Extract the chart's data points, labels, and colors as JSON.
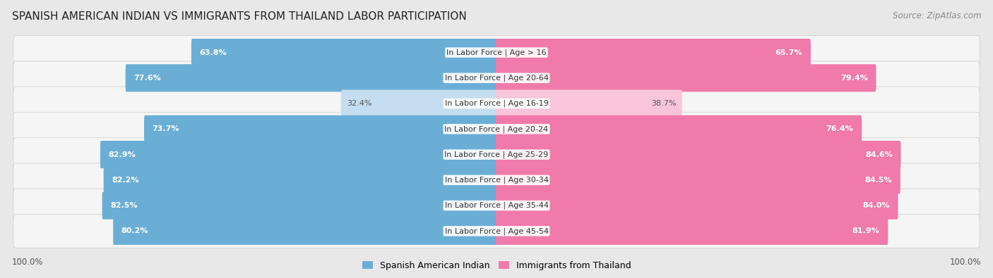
{
  "title": "SPANISH AMERICAN INDIAN VS IMMIGRANTS FROM THAILAND LABOR PARTICIPATION",
  "source": "Source: ZipAtlas.com",
  "categories": [
    "In Labor Force | Age > 16",
    "In Labor Force | Age 20-64",
    "In Labor Force | Age 16-19",
    "In Labor Force | Age 20-24",
    "In Labor Force | Age 25-29",
    "In Labor Force | Age 30-34",
    "In Labor Force | Age 35-44",
    "In Labor Force | Age 45-54"
  ],
  "left_values": [
    63.8,
    77.6,
    32.4,
    73.7,
    82.9,
    82.2,
    82.5,
    80.2
  ],
  "right_values": [
    65.7,
    79.4,
    38.7,
    76.4,
    84.6,
    84.5,
    84.0,
    81.9
  ],
  "left_color": "#6aaed6",
  "right_color": "#f07aaa",
  "left_color_light": "#c5ddf0",
  "right_color_light": "#f9c5da",
  "left_label": "Spanish American Indian",
  "right_label": "Immigrants from Thailand",
  "bg_color": "#e8e8e8",
  "row_bg_color": "#f5f5f5",
  "max_val": 100.0,
  "title_fontsize": 11,
  "label_fontsize": 8,
  "value_fontsize": 8,
  "footer_fontsize": 8.5
}
